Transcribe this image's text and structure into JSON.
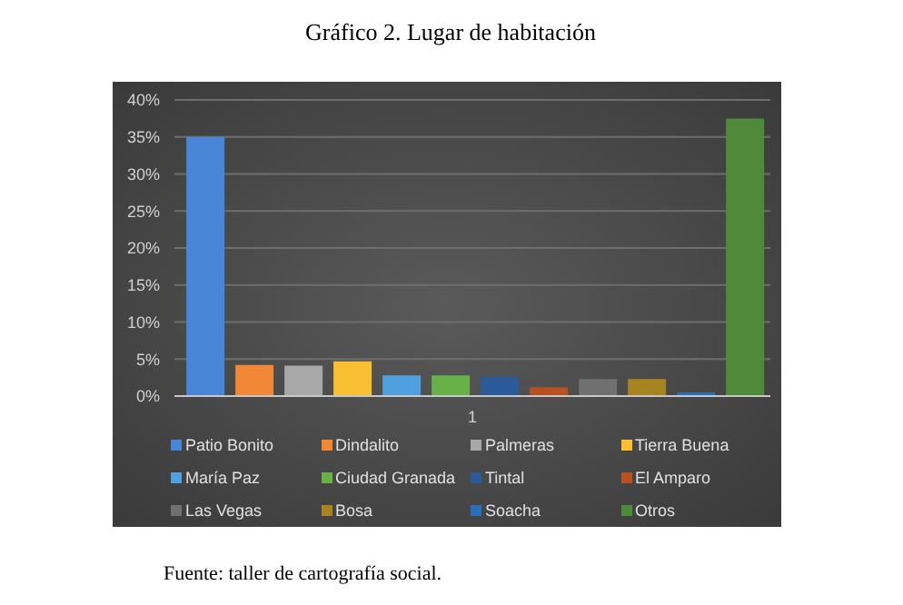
{
  "chart_data": {
    "type": "bar",
    "title": "Gráfico 2. Lugar de habitación",
    "categories": [
      "1"
    ],
    "series": [
      {
        "name": "Patio Bonito",
        "color": "#4a86d8",
        "values": [
          35.0
        ]
      },
      {
        "name": "Dindalito",
        "color": "#f08838",
        "values": [
          4.2
        ]
      },
      {
        "name": "Palmeras",
        "color": "#a8a8a8",
        "values": [
          4.1
        ]
      },
      {
        "name": "Tierra Buena",
        "color": "#f8c030",
        "values": [
          4.7
        ]
      },
      {
        "name": "María Paz",
        "color": "#50a0e0",
        "values": [
          2.8
        ]
      },
      {
        "name": "Ciudad Granada",
        "color": "#68b048",
        "values": [
          2.8
        ]
      },
      {
        "name": "Tintal",
        "color": "#2a5a98",
        "values": [
          2.6
        ]
      },
      {
        "name": "El Amparo",
        "color": "#b85020",
        "values": [
          1.2
        ]
      },
      {
        "name": "Las Vegas",
        "color": "#707070",
        "values": [
          2.3
        ]
      },
      {
        "name": "Bosa",
        "color": "#a88420",
        "values": [
          2.3
        ]
      },
      {
        "name": "Soacha",
        "color": "#2a70b8",
        "values": [
          0.5
        ]
      },
      {
        "name": "Otros",
        "color": "#4e8a3a",
        "values": [
          37.5
        ]
      }
    ],
    "ylim": [
      0,
      40
    ],
    "yticks": [
      {
        "value": 0,
        "label": "0%"
      },
      {
        "value": 5,
        "label": "5%"
      },
      {
        "value": 10,
        "label": "10%"
      },
      {
        "value": 15,
        "label": "15%"
      },
      {
        "value": 20,
        "label": "20%"
      },
      {
        "value": 25,
        "label": "25%"
      },
      {
        "value": 30,
        "label": "30%"
      },
      {
        "value": 35,
        "label": "35%"
      },
      {
        "value": 40,
        "label": "40%"
      }
    ],
    "grid": "y",
    "legend": "bottom",
    "annotations": [
      "Fuente: taller de cartografía social."
    ]
  }
}
